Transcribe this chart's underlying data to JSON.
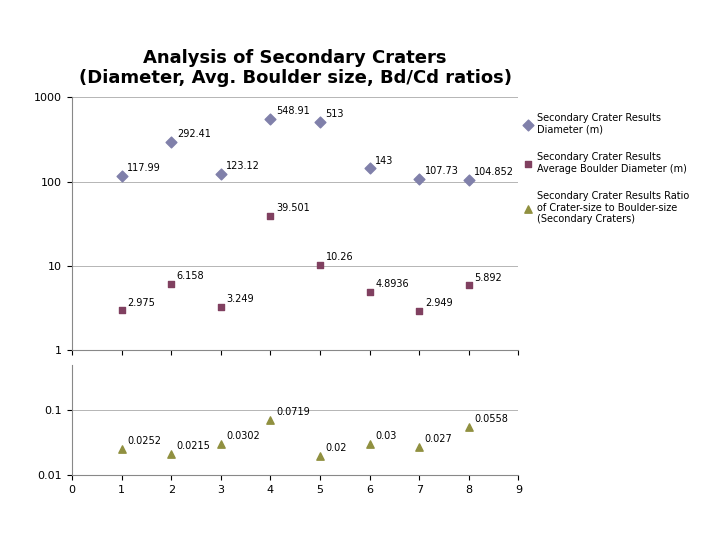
{
  "title": "Analysis of Secondary Craters\n(Diameter, Avg. Boulder size, Bd/Cd ratios)",
  "x_values": [
    1,
    2,
    3,
    4,
    5,
    6,
    7,
    8
  ],
  "diameter": [
    117.99,
    292.41,
    123.12,
    548.91,
    513,
    143,
    107.73,
    104.852
  ],
  "boulder": [
    2.975,
    6.158,
    3.249,
    39.501,
    10.26,
    4.8936,
    2.949,
    5.892
  ],
  "ratio": [
    0.0252,
    0.0215,
    0.0302,
    0.0719,
    0.02,
    0.03,
    0.027,
    0.0558
  ],
  "diameter_labels": [
    "117.99",
    "292.41",
    "123.12",
    "548.91",
    "513",
    "143",
    "107.73",
    "104.852"
  ],
  "boulder_labels": [
    "2.975",
    "6.158",
    "3.249",
    "39.501",
    "10.26",
    "4.8936",
    "2.949",
    "5.892"
  ],
  "ratio_labels": [
    "0.0252",
    "0.0215",
    "0.0302",
    "0.0719",
    "0.02",
    "0.03",
    "0.027",
    "0.0558"
  ],
  "diameter_color": "#8080AA",
  "boulder_color": "#804060",
  "ratio_color": "#909040",
  "xlim": [
    0,
    9
  ],
  "ylim_upper": [
    1,
    1000
  ],
  "ylim_lower": [
    0.01,
    0.5
  ],
  "background_color": "#ffffff",
  "legend_diameter": "Secondary Crater Results\nDiameter (m)",
  "legend_boulder": "Secondary Crater Results\nAverage Boulder Diameter (m)",
  "legend_ratio": "Secondary Crater Results Ratio\nof Crater-size to Boulder-size\n(Secondary Craters)"
}
